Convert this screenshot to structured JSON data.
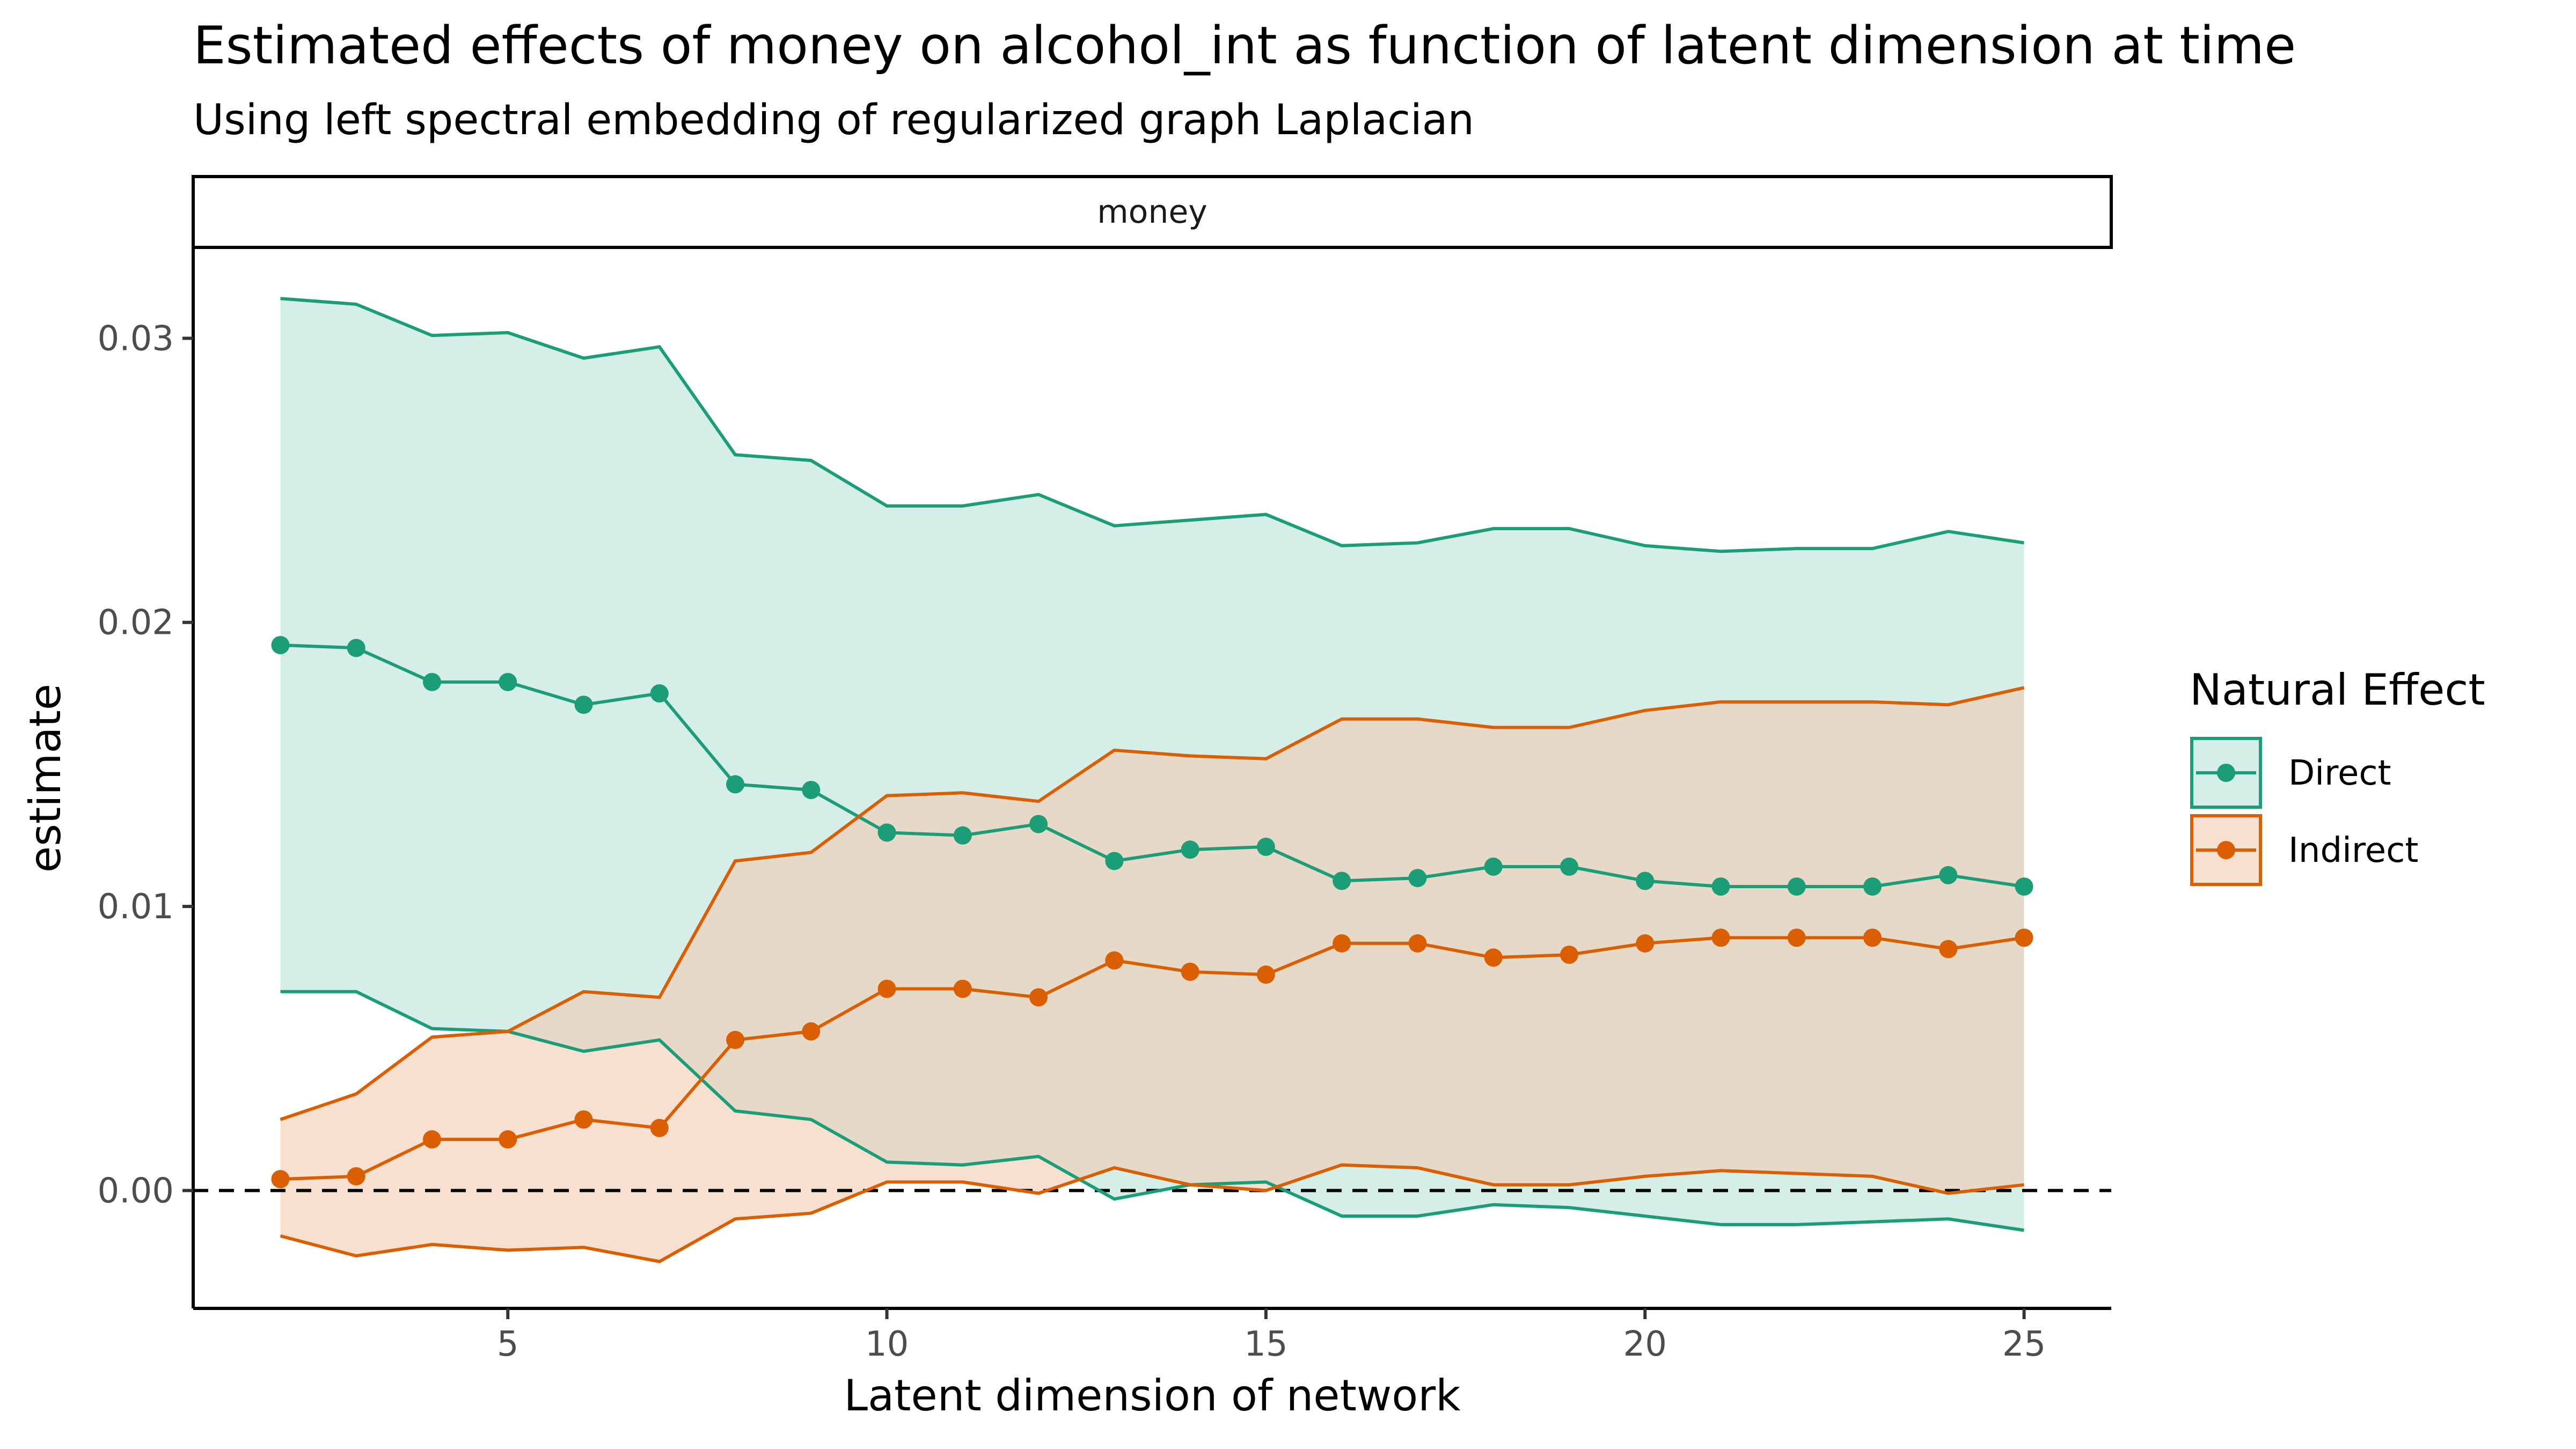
{
  "chart_data": {
    "type": "line",
    "title": "Estimated effects of money on alcohol_int as function of latent dimension at time",
    "subtitle": "Using left spectral embedding of  regularized graph Laplacian",
    "facet_label": "money",
    "xlabel": "Latent dimension of network",
    "ylabel": "estimate",
    "xlim": [
      0.85,
      26.15
    ],
    "ylim": [
      -0.00415,
      0.0332
    ],
    "x_ticks": [
      5,
      10,
      15,
      20,
      25
    ],
    "x_tick_labels": [
      "5",
      "10",
      "15",
      "20",
      "25"
    ],
    "y_ticks": [
      0,
      0.01,
      0.02,
      0.03
    ],
    "y_tick_labels": [
      "0.00",
      "0.01",
      "0.02",
      "0.03"
    ],
    "reference_line": {
      "y": 0,
      "style": "dashed",
      "color": "#000000"
    },
    "grid": false,
    "legend": {
      "title": "Natural Effect",
      "placement": "right"
    },
    "x": [
      2,
      3,
      4,
      5,
      6,
      7,
      8,
      9,
      10,
      11,
      12,
      13,
      14,
      15,
      16,
      17,
      18,
      19,
      20,
      21,
      22,
      23,
      24,
      25
    ],
    "series": [
      {
        "name": "Direct",
        "color": "#1B9E77",
        "fill": "#B9E3D8",
        "values": [
          0.0192,
          0.0191,
          0.0179,
          0.0179,
          0.0171,
          0.0175,
          0.0143,
          0.0141,
          0.0126,
          0.0125,
          0.0129,
          0.0116,
          0.012,
          0.0121,
          0.0109,
          0.011,
          0.0114,
          0.0114,
          0.0109,
          0.0107,
          0.0107,
          0.0107,
          0.0111,
          0.0107
        ],
        "upper": [
          0.0314,
          0.0312,
          0.0301,
          0.0302,
          0.0293,
          0.0297,
          0.0259,
          0.0257,
          0.0241,
          0.0241,
          0.0245,
          0.0234,
          0.0236,
          0.0238,
          0.0227,
          0.0228,
          0.0233,
          0.0233,
          0.0227,
          0.0225,
          0.0226,
          0.0226,
          0.0232,
          0.0228
        ],
        "lower": [
          0.007,
          0.007,
          0.0057,
          0.0056,
          0.0049,
          0.0053,
          0.0028,
          0.0025,
          0.001,
          0.0009,
          0.0012,
          -0.0003,
          0.0002,
          0.0003,
          -0.0009,
          -0.0009,
          -0.0005,
          -0.0006,
          -0.0009,
          -0.0012,
          -0.0012,
          -0.0011,
          -0.001,
          -0.0014
        ]
      },
      {
        "name": "Indirect",
        "color": "#D95F02",
        "fill": "#F4CBB0",
        "values": [
          0.0004,
          0.0005,
          0.0018,
          0.0018,
          0.0025,
          0.0022,
          0.0053,
          0.0056,
          0.0071,
          0.0071,
          0.0068,
          0.0081,
          0.0077,
          0.0076,
          0.0087,
          0.0087,
          0.0082,
          0.0083,
          0.0087,
          0.0089,
          0.0089,
          0.0089,
          0.0085,
          0.0089
        ],
        "upper": [
          0.0025,
          0.0034,
          0.0054,
          0.0056,
          0.007,
          0.0068,
          0.0116,
          0.0119,
          0.0139,
          0.014,
          0.0137,
          0.0155,
          0.0153,
          0.0152,
          0.0166,
          0.0166,
          0.0163,
          0.0163,
          0.0169,
          0.0172,
          0.0172,
          0.0172,
          0.0171,
          0.0177
        ],
        "lower": [
          -0.0016,
          -0.0023,
          -0.0019,
          -0.0021,
          -0.002,
          -0.0025,
          -0.001,
          -0.0008,
          0.0003,
          0.0003,
          -0.0001,
          0.0008,
          0.0002,
          0.0,
          0.0009,
          0.0008,
          0.0002,
          0.0002,
          0.0005,
          0.0007,
          0.0006,
          0.0005,
          -0.0001,
          0.0002
        ]
      }
    ]
  }
}
